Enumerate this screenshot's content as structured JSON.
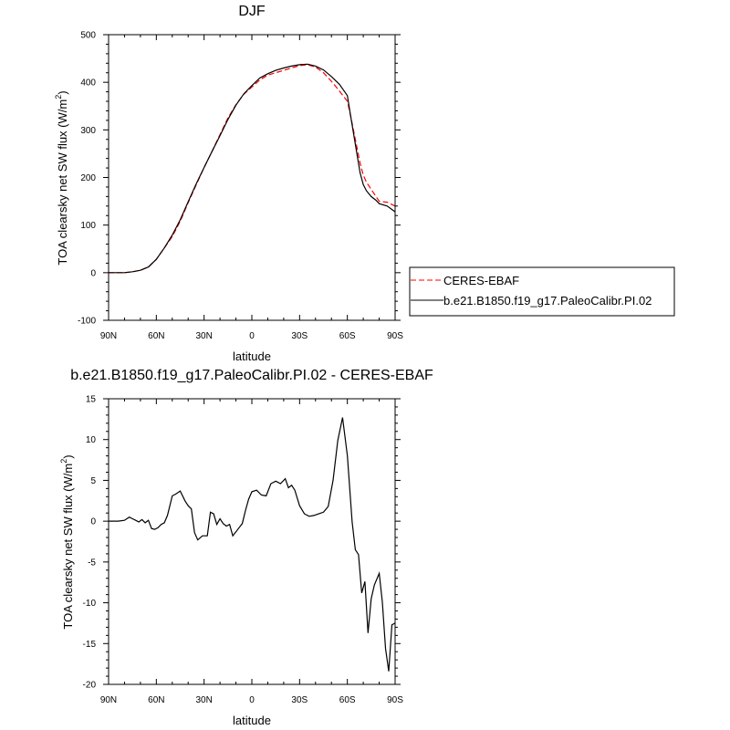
{
  "chart_data": [
    {
      "type": "line",
      "title": "DJF",
      "xlabel": "latitude",
      "ylabel": "TOA clearsky net SW flux (W/m",
      "ylabel_sup": "2",
      "ylabel_close": ")",
      "xlim": [
        90,
        -90
      ],
      "ylim": [
        -100,
        500
      ],
      "xticks": [
        90,
        60,
        30,
        0,
        -30,
        -60,
        -90
      ],
      "xtick_labels": [
        "90N",
        "60N",
        "30N",
        "0",
        "30S",
        "60S",
        "90S"
      ],
      "yticks": [
        -100,
        0,
        100,
        200,
        300,
        400,
        500
      ],
      "ytick_labels": [
        "-100",
        "0",
        "100",
        "200",
        "300",
        "400",
        "500"
      ],
      "grid": false,
      "legend_position": "right",
      "series": [
        {
          "name": "CERES-EBAF",
          "color": "#ff0000",
          "dash": "dashed",
          "x": [
            90,
            85,
            80,
            75,
            70,
            65,
            60,
            55,
            50,
            45,
            40,
            35,
            30,
            25,
            20,
            15,
            10,
            5,
            0,
            -5,
            -10,
            -15,
            -20,
            -25,
            -30,
            -35,
            -40,
            -45,
            -50,
            -55,
            -60,
            -62,
            -65,
            -68,
            -70,
            -72,
            -75,
            -78,
            -80,
            -85,
            -90
          ],
          "y": [
            0,
            0,
            0,
            2,
            5,
            12,
            28,
            52,
            76,
            108,
            147,
            184,
            221,
            255,
            290,
            325,
            353,
            375,
            390,
            405,
            415,
            420,
            425,
            430,
            435,
            437,
            432,
            420,
            402,
            382,
            360,
            330,
            280,
            230,
            205,
            190,
            175,
            160,
            150,
            148,
            140
          ]
        },
        {
          "name": "b.e21.B1850.f19_g17.PaleoCalibr.PI.02",
          "color": "#000000",
          "dash": "solid",
          "x": [
            90,
            85,
            80,
            75,
            70,
            65,
            60,
            55,
            50,
            45,
            40,
            35,
            30,
            25,
            20,
            15,
            10,
            5,
            0,
            -5,
            -10,
            -15,
            -20,
            -25,
            -30,
            -35,
            -40,
            -45,
            -50,
            -55,
            -60,
            -62,
            -65,
            -68,
            -70,
            -72,
            -75,
            -78,
            -80,
            -85,
            -90
          ],
          "y": [
            0,
            0,
            0,
            2,
            5,
            12,
            28,
            52,
            79,
            111,
            149,
            186,
            221,
            255,
            288,
            322,
            352,
            376,
            393,
            409,
            418,
            425,
            430,
            434,
            437,
            438,
            434,
            426,
            412,
            396,
            372,
            330,
            270,
            210,
            185,
            172,
            160,
            152,
            145,
            140,
            128
          ]
        }
      ]
    },
    {
      "type": "line",
      "title": "b.e21.B1850.f19_g17.PaleoCalibr.PI.02 - CERES-EBAF",
      "xlabel": "latitude",
      "ylabel": "TOA clearsky net SW flux (W/m",
      "ylabel_sup": "2",
      "ylabel_close": ")",
      "xlim": [
        90,
        -90
      ],
      "ylim": [
        -20,
        15
      ],
      "xticks": [
        90,
        60,
        30,
        0,
        -30,
        -60,
        -90
      ],
      "xtick_labels": [
        "90N",
        "60N",
        "30N",
        "0",
        "30S",
        "60S",
        "90S"
      ],
      "yticks": [
        -20,
        -15,
        -10,
        -5,
        0,
        5,
        10,
        15
      ],
      "ytick_labels": [
        "-20",
        "-15",
        "-10",
        "-5",
        "0",
        "5",
        "10",
        "15"
      ],
      "grid": false,
      "series": [
        {
          "color": "#000000",
          "x": [
            90,
            88,
            84,
            80,
            77,
            75,
            73,
            71,
            69,
            67,
            65,
            63,
            61,
            59,
            57,
            55,
            53,
            50,
            48,
            45,
            42,
            40,
            38,
            36,
            34,
            31,
            28,
            26,
            24,
            22,
            20,
            18,
            16,
            14,
            12,
            10,
            8,
            6,
            4,
            2,
            0,
            -3,
            -6,
            -9,
            -12,
            -15,
            -18,
            -21,
            -23,
            -25,
            -27,
            -30,
            -33,
            -36,
            -39,
            -42,
            -45,
            -48,
            -51,
            -54,
            -57,
            -60,
            -63,
            -65,
            -67,
            -69,
            -71,
            -73,
            -75,
            -77,
            -80,
            -82,
            -84,
            -86,
            -88,
            -90
          ],
          "y": [
            0,
            0,
            0,
            0.1,
            0.5,
            0.3,
            0.1,
            -0.1,
            0.2,
            -0.2,
            0.1,
            -0.9,
            -1.0,
            -0.8,
            -0.4,
            -0.2,
            0.7,
            3.1,
            3.3,
            3.7,
            2.5,
            1.9,
            1.5,
            -1.4,
            -2.3,
            -1.8,
            -1.8,
            1.1,
            0.9,
            -0.4,
            0.3,
            -0.3,
            -0.6,
            -0.4,
            -1.8,
            -1.3,
            -0.8,
            -0.3,
            1.3,
            2.7,
            3.6,
            3.8,
            3.2,
            3.1,
            4.6,
            4.9,
            4.6,
            5.2,
            4.1,
            4.4,
            3.8,
            1.9,
            0.9,
            0.6,
            0.7,
            0.9,
            1.1,
            1.8,
            5.0,
            9.9,
            12.7,
            8.0,
            -0.1,
            -3.5,
            -4.1,
            -8.8,
            -7.4,
            -13.7,
            -9.5,
            -7.8,
            -6.4,
            -9.9,
            -15.6,
            -18.4,
            -12.7,
            -12.5
          ]
        }
      ]
    }
  ]
}
